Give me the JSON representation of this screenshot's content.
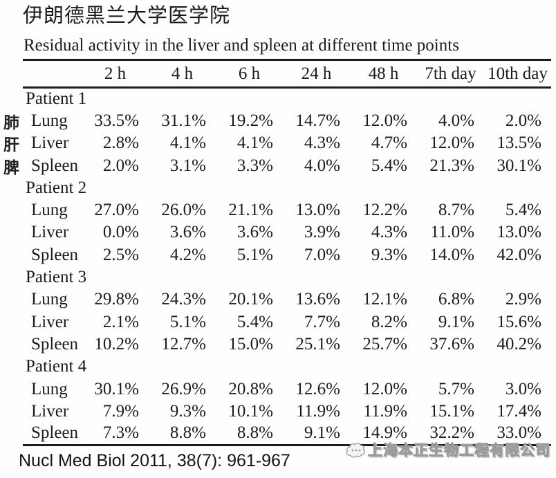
{
  "page": {
    "title": "伊朗德黑兰大学医学院",
    "caption": "Residual activity in the liver and spleen at different time points",
    "citation": "Nucl Med Biol 2011, 38(7): 961-967",
    "watermark": "上海本正生物工程有限公司"
  },
  "colors": {
    "background": "#fefefe",
    "text": "#1b1b1b",
    "rule": "#1b1b1b",
    "watermark_gray": "#9a9a9a"
  },
  "chart_data": {
    "type": "table",
    "title": "Residual activity in the liver and spleen at different time points",
    "time_columns": [
      "2 h",
      "4 h",
      "6 h",
      "24 h",
      "48 h",
      "7th day",
      "10th day"
    ],
    "side_organ_labels_cn": [
      "肺",
      "肝",
      "脾"
    ],
    "patients": [
      {
        "label": "Patient 1",
        "rows": [
          {
            "organ": "Lung",
            "cn": "肺",
            "values": [
              "33.5%",
              "31.1%",
              "19.2%",
              "14.7%",
              "12.0%",
              "4.0%",
              "2.0%"
            ]
          },
          {
            "organ": "Liver",
            "cn": "肝",
            "values": [
              "2.8%",
              "4.1%",
              "4.1%",
              "4.3%",
              "4.7%",
              "12.0%",
              "13.5%"
            ]
          },
          {
            "organ": "Spleen",
            "cn": "脾",
            "values": [
              "2.0%",
              "3.1%",
              "3.3%",
              "4.0%",
              "5.4%",
              "21.3%",
              "30.1%"
            ]
          }
        ]
      },
      {
        "label": "Patient 2",
        "rows": [
          {
            "organ": "Lung",
            "values": [
              "27.0%",
              "26.0%",
              "21.1%",
              "13.0%",
              "12.2%",
              "8.7%",
              "5.4%"
            ]
          },
          {
            "organ": "Liver",
            "values": [
              "0.0%",
              "3.6%",
              "3.6%",
              "3.9%",
              "4.3%",
              "11.0%",
              "13.0%"
            ]
          },
          {
            "organ": "Spleen",
            "values": [
              "2.5%",
              "4.2%",
              "5.1%",
              "7.0%",
              "9.3%",
              "14.0%",
              "42.0%"
            ]
          }
        ]
      },
      {
        "label": "Patient 3",
        "rows": [
          {
            "organ": "Lung",
            "values": [
              "29.8%",
              "24.3%",
              "20.1%",
              "13.6%",
              "12.1%",
              "6.8%",
              "2.9%"
            ]
          },
          {
            "organ": "Liver",
            "values": [
              "2.1%",
              "5.1%",
              "5.4%",
              "7.7%",
              "8.2%",
              "9.1%",
              "15.6%"
            ]
          },
          {
            "organ": "Spleen",
            "values": [
              "10.2%",
              "12.7%",
              "15.0%",
              "25.1%",
              "25.7%",
              "37.6%",
              "40.2%"
            ]
          }
        ]
      },
      {
        "label": "Patient 4",
        "rows": [
          {
            "organ": "Lung",
            "values": [
              "30.1%",
              "26.9%",
              "20.8%",
              "12.6%",
              "12.0%",
              "5.7%",
              "3.0%"
            ]
          },
          {
            "organ": "Liver",
            "values": [
              "7.9%",
              "9.3%",
              "10.1%",
              "11.9%",
              "11.9%",
              "15.1%",
              "17.4%"
            ]
          },
          {
            "organ": "Spleen",
            "values": [
              "7.3%",
              "8.8%",
              "8.8%",
              "9.1%",
              "14.9%",
              "32.2%",
              "33.0%"
            ]
          }
        ]
      }
    ]
  }
}
